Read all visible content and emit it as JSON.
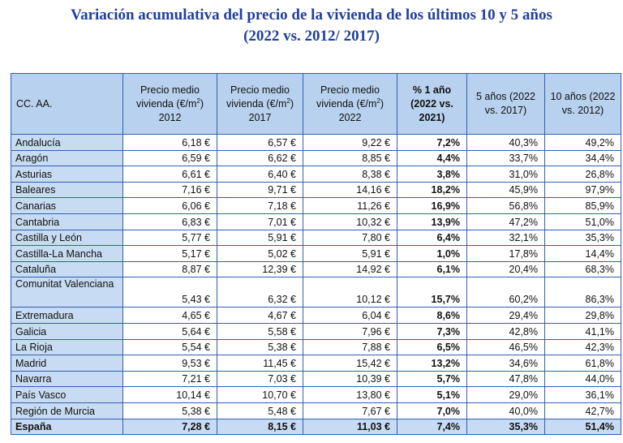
{
  "title": {
    "line1": "Variación acumulativa del precio de la vivienda de los últimos 10 y 5 años",
    "line2": "(2022 vs. 2012/ 2017)"
  },
  "table": {
    "headers": {
      "region": "CC. AA.",
      "price_label": "Precio medio vivienda (€/m",
      "price_sup": "2",
      "price_close": ")",
      "year_2012": "2012",
      "year_2017": "2017",
      "year_2022": "2022",
      "one_year": "% 1 año (2022 vs. 2021)",
      "five_years": "5 años (2022 vs. 2017)",
      "ten_years": "10 años (2022 vs. 2012)"
    },
    "rows": [
      {
        "name": "Andalucía",
        "p2012": "6,18 €",
        "p2017": "6,57 €",
        "p2022": "9,22 €",
        "y1": "7,2%",
        "y5": "40,3%",
        "y10": "49,2%"
      },
      {
        "name": "Aragón",
        "p2012": "6,59 €",
        "p2017": "6,62 €",
        "p2022": "8,85 €",
        "y1": "4,4%",
        "y5": "33,7%",
        "y10": "34,4%"
      },
      {
        "name": "Asturias",
        "p2012": "6,61 €",
        "p2017": "6,40 €",
        "p2022": "8,38 €",
        "y1": "3,8%",
        "y5": "31,0%",
        "y10": "26,8%"
      },
      {
        "name": "Baleares",
        "p2012": "7,16 €",
        "p2017": "9,71 €",
        "p2022": "14,16 €",
        "y1": "18,2%",
        "y5": "45,9%",
        "y10": "97,9%"
      },
      {
        "name": "Canarias",
        "p2012": "6,06 €",
        "p2017": "7,18 €",
        "p2022": "11,26 €",
        "y1": "16,9%",
        "y5": "56,8%",
        "y10": "85,9%"
      },
      {
        "name": "Cantabria",
        "p2012": "6,83 €",
        "p2017": "7,01 €",
        "p2022": "10,32 €",
        "y1": "13,9%",
        "y5": "47,2%",
        "y10": "51,0%"
      },
      {
        "name": "Castilla y León",
        "p2012": "5,77 €",
        "p2017": "5,91 €",
        "p2022": "7,80 €",
        "y1": "6,4%",
        "y5": "32,1%",
        "y10": "35,3%"
      },
      {
        "name": "Castilla-La Mancha",
        "p2012": "5,17 €",
        "p2017": "5,02 €",
        "p2022": "5,91 €",
        "y1": "1,0%",
        "y5": "17,8%",
        "y10": "14,4%"
      },
      {
        "name": "Cataluña",
        "p2012": "8,87 €",
        "p2017": "12,39 €",
        "p2022": "14,92 €",
        "y1": "6,1%",
        "y5": "20,4%",
        "y10": "68,3%"
      },
      {
        "name": "Comunitat Valenciana",
        "p2012": "5,43 €",
        "p2017": "6,32 €",
        "p2022": "10,12 €",
        "y1": "15,7%",
        "y5": "60,2%",
        "y10": "86,3%"
      },
      {
        "name": "Extremadura",
        "p2012": "4,65 €",
        "p2017": "4,67 €",
        "p2022": "6,04 €",
        "y1": "8,6%",
        "y5": "29,4%",
        "y10": "29,8%"
      },
      {
        "name": "Galicia",
        "p2012": "5,64 €",
        "p2017": "5,58 €",
        "p2022": "7,96 €",
        "y1": "7,3%",
        "y5": "42,8%",
        "y10": "41,1%"
      },
      {
        "name": "La Rioja",
        "p2012": "5,54 €",
        "p2017": "5,38 €",
        "p2022": "7,88 €",
        "y1": "6,5%",
        "y5": "46,5%",
        "y10": "42,3%"
      },
      {
        "name": "Madrid",
        "p2012": "9,53 €",
        "p2017": "11,45 €",
        "p2022": "15,42 €",
        "y1": "13,2%",
        "y5": "34,6%",
        "y10": "61,8%"
      },
      {
        "name": "Navarra",
        "p2012": "7,21 €",
        "p2017": "7,03 €",
        "p2022": "10,39 €",
        "y1": "5,7%",
        "y5": "47,8%",
        "y10": "44,0%"
      },
      {
        "name": "País Vasco",
        "p2012": "10,14 €",
        "p2017": "10,70 €",
        "p2022": "13,80 €",
        "y1": "5,1%",
        "y5": "29,0%",
        "y10": "36,1%"
      },
      {
        "name": "Región de Murcia",
        "p2012": "5,38 €",
        "p2017": "5,48 €",
        "p2022": "7,67 €",
        "y1": "7,0%",
        "y5": "40,0%",
        "y10": "42,7%"
      }
    ],
    "total": {
      "name": "España",
      "p2012": "7,28 €",
      "p2017": "8,15 €",
      "p2022": "11,03 €",
      "y1": "7,4%",
      "y5": "35,3%",
      "y10": "51,4%"
    }
  }
}
